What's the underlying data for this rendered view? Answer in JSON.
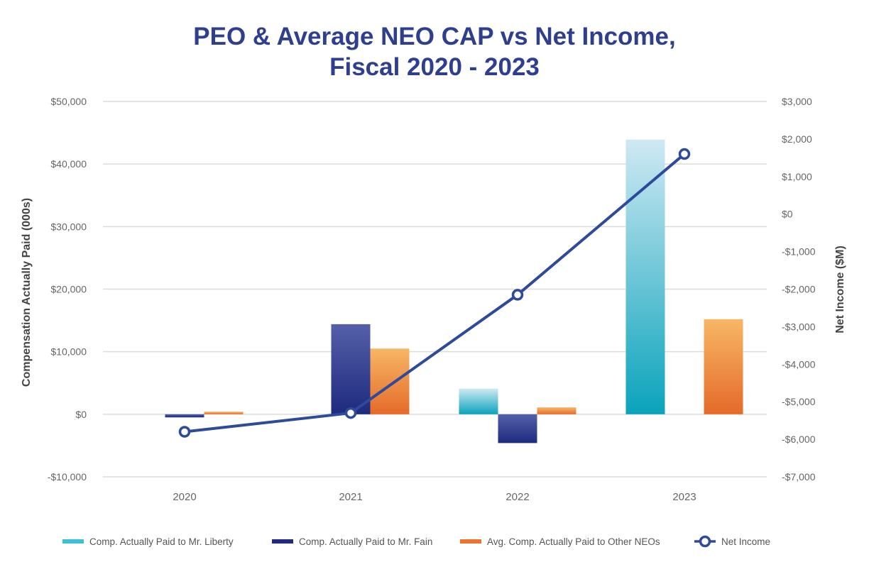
{
  "chart_data": {
    "type": "bar",
    "title": [
      "PEO & Average NEO CAP vs Net Income,",
      "Fiscal 2020 - 2023"
    ],
    "categories": [
      "2020",
      "2021",
      "2022",
      "2023"
    ],
    "ylabel": "Compensation Actually Paid (000s)",
    "y2label": "Net Income ($M)",
    "ylim": [
      -10000,
      50000
    ],
    "y2lim": [
      -7000,
      3000
    ],
    "y_ticks": [
      50000,
      40000,
      30000,
      20000,
      10000,
      0,
      -10000
    ],
    "y_tick_labels": [
      "$50,000",
      "$40,000",
      "$30,000",
      "$20,000",
      "$10,000",
      "$0",
      "-$10,000"
    ],
    "y2_ticks": [
      3000,
      2000,
      1000,
      0,
      -1000,
      -2000,
      -3000,
      -4000,
      -5000,
      -6000,
      -7000
    ],
    "y2_tick_labels": [
      "$3,000",
      "$2,000",
      "$1,000",
      "$0",
      "-$1,000",
      "-$2,000",
      "-$3,000",
      "-$4,000",
      "-$5,000",
      "-$6,000",
      "-$7,000"
    ],
    "grid": true,
    "legend_position": "bottom",
    "series": [
      {
        "name": "Comp. Actually Paid to Mr. Liberty",
        "type": "bar",
        "axis": "left",
        "values": [
          null,
          null,
          4100,
          43900
        ],
        "color": "#1ea7c0",
        "color_light": "#c8e7f1"
      },
      {
        "name": "Comp. Actually Paid to Mr. Fain",
        "type": "bar",
        "axis": "left",
        "values": [
          -500,
          14400,
          -4600,
          null
        ],
        "color": "#262a7a",
        "color_light": "#4a55a2"
      },
      {
        "name": "Avg. Comp. Actually Paid to Other NEOs",
        "type": "bar",
        "axis": "left",
        "values": [
          400,
          10500,
          1100,
          15200
        ],
        "color": "#e8722e",
        "color_light": "#f6b660"
      },
      {
        "name": "Net Income",
        "type": "line",
        "axis": "right",
        "values": [
          -5800,
          -5300,
          -2150,
          1600
        ],
        "color": "#2e4a9a"
      }
    ]
  }
}
